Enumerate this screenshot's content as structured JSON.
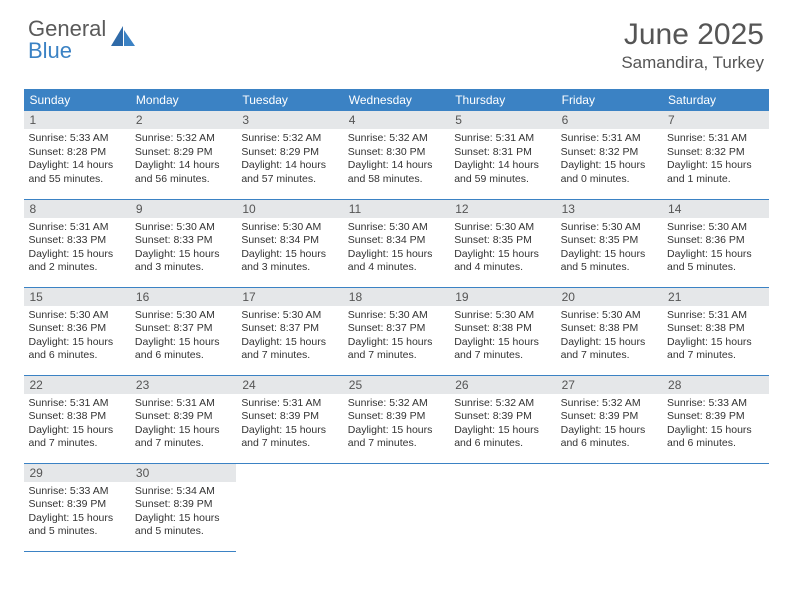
{
  "brand": {
    "part1": "General",
    "part2": "Blue"
  },
  "title": "June 2025",
  "location": "Samandira, Turkey",
  "colors": {
    "header_bg": "#3b82c4",
    "header_text": "#ffffff",
    "daynum_bg": "#e5e7e9",
    "daynum_text": "#555555",
    "body_text": "#333333",
    "rule": "#3b82c4",
    "title_text": "#555555",
    "page_bg": "#ffffff"
  },
  "typography": {
    "title_fontsize": 30,
    "location_fontsize": 17,
    "dayheader_fontsize": 12,
    "body_fontsize": 10.5
  },
  "dayNames": [
    "Sunday",
    "Monday",
    "Tuesday",
    "Wednesday",
    "Thursday",
    "Friday",
    "Saturday"
  ],
  "weeks": [
    [
      {
        "n": "1",
        "sr": "5:33 AM",
        "ss": "8:28 PM",
        "dl": "14 hours and 55 minutes."
      },
      {
        "n": "2",
        "sr": "5:32 AM",
        "ss": "8:29 PM",
        "dl": "14 hours and 56 minutes."
      },
      {
        "n": "3",
        "sr": "5:32 AM",
        "ss": "8:29 PM",
        "dl": "14 hours and 57 minutes."
      },
      {
        "n": "4",
        "sr": "5:32 AM",
        "ss": "8:30 PM",
        "dl": "14 hours and 58 minutes."
      },
      {
        "n": "5",
        "sr": "5:31 AM",
        "ss": "8:31 PM",
        "dl": "14 hours and 59 minutes."
      },
      {
        "n": "6",
        "sr": "5:31 AM",
        "ss": "8:32 PM",
        "dl": "15 hours and 0 minutes."
      },
      {
        "n": "7",
        "sr": "5:31 AM",
        "ss": "8:32 PM",
        "dl": "15 hours and 1 minute."
      }
    ],
    [
      {
        "n": "8",
        "sr": "5:31 AM",
        "ss": "8:33 PM",
        "dl": "15 hours and 2 minutes."
      },
      {
        "n": "9",
        "sr": "5:30 AM",
        "ss": "8:33 PM",
        "dl": "15 hours and 3 minutes."
      },
      {
        "n": "10",
        "sr": "5:30 AM",
        "ss": "8:34 PM",
        "dl": "15 hours and 3 minutes."
      },
      {
        "n": "11",
        "sr": "5:30 AM",
        "ss": "8:34 PM",
        "dl": "15 hours and 4 minutes."
      },
      {
        "n": "12",
        "sr": "5:30 AM",
        "ss": "8:35 PM",
        "dl": "15 hours and 4 minutes."
      },
      {
        "n": "13",
        "sr": "5:30 AM",
        "ss": "8:35 PM",
        "dl": "15 hours and 5 minutes."
      },
      {
        "n": "14",
        "sr": "5:30 AM",
        "ss": "8:36 PM",
        "dl": "15 hours and 5 minutes."
      }
    ],
    [
      {
        "n": "15",
        "sr": "5:30 AM",
        "ss": "8:36 PM",
        "dl": "15 hours and 6 minutes."
      },
      {
        "n": "16",
        "sr": "5:30 AM",
        "ss": "8:37 PM",
        "dl": "15 hours and 6 minutes."
      },
      {
        "n": "17",
        "sr": "5:30 AM",
        "ss": "8:37 PM",
        "dl": "15 hours and 7 minutes."
      },
      {
        "n": "18",
        "sr": "5:30 AM",
        "ss": "8:37 PM",
        "dl": "15 hours and 7 minutes."
      },
      {
        "n": "19",
        "sr": "5:30 AM",
        "ss": "8:38 PM",
        "dl": "15 hours and 7 minutes."
      },
      {
        "n": "20",
        "sr": "5:30 AM",
        "ss": "8:38 PM",
        "dl": "15 hours and 7 minutes."
      },
      {
        "n": "21",
        "sr": "5:31 AM",
        "ss": "8:38 PM",
        "dl": "15 hours and 7 minutes."
      }
    ],
    [
      {
        "n": "22",
        "sr": "5:31 AM",
        "ss": "8:38 PM",
        "dl": "15 hours and 7 minutes."
      },
      {
        "n": "23",
        "sr": "5:31 AM",
        "ss": "8:39 PM",
        "dl": "15 hours and 7 minutes."
      },
      {
        "n": "24",
        "sr": "5:31 AM",
        "ss": "8:39 PM",
        "dl": "15 hours and 7 minutes."
      },
      {
        "n": "25",
        "sr": "5:32 AM",
        "ss": "8:39 PM",
        "dl": "15 hours and 7 minutes."
      },
      {
        "n": "26",
        "sr": "5:32 AM",
        "ss": "8:39 PM",
        "dl": "15 hours and 6 minutes."
      },
      {
        "n": "27",
        "sr": "5:32 AM",
        "ss": "8:39 PM",
        "dl": "15 hours and 6 minutes."
      },
      {
        "n": "28",
        "sr": "5:33 AM",
        "ss": "8:39 PM",
        "dl": "15 hours and 6 minutes."
      }
    ],
    [
      {
        "n": "29",
        "sr": "5:33 AM",
        "ss": "8:39 PM",
        "dl": "15 hours and 5 minutes."
      },
      {
        "n": "30",
        "sr": "5:34 AM",
        "ss": "8:39 PM",
        "dl": "15 hours and 5 minutes."
      },
      null,
      null,
      null,
      null,
      null
    ]
  ],
  "labels": {
    "sunrise": "Sunrise: ",
    "sunset": "Sunset: ",
    "daylight": "Daylight: "
  }
}
